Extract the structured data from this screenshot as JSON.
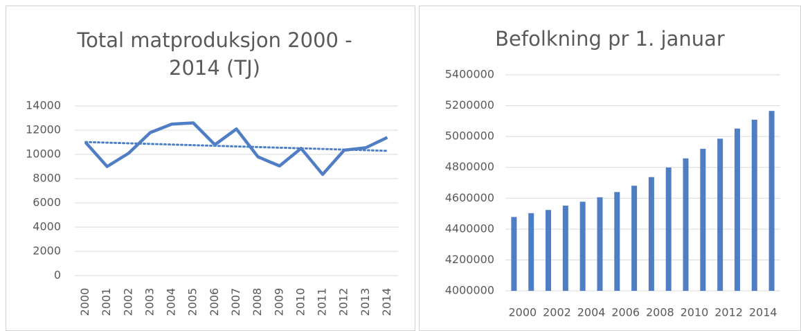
{
  "chart_data": [
    {
      "type": "line",
      "title": "Total matproduksjon 2000 - 2014 (TJ)",
      "categories": [
        "2000",
        "2001",
        "2002",
        "2003",
        "2004",
        "2005",
        "2006",
        "2007",
        "2008",
        "2009",
        "2010",
        "2011",
        "2012",
        "2013",
        "2014"
      ],
      "values": [
        11000,
        9000,
        10100,
        11800,
        12500,
        12600,
        10800,
        12100,
        9800,
        9050,
        10500,
        8350,
        10350,
        10550,
        11400
      ],
      "color": "#4f7ec4",
      "trendline": "linear",
      "ylim": [
        0,
        14000
      ],
      "yticks": [
        0,
        2000,
        4000,
        6000,
        8000,
        10000,
        12000,
        14000
      ],
      "grid": true
    },
    {
      "type": "bar",
      "title": "Befolkning pr 1. januar",
      "categories": [
        "2000",
        null,
        "2002",
        null,
        "2004",
        null,
        "2006",
        null,
        "2008",
        null,
        "2010",
        null,
        "2012",
        null,
        "2014",
        null
      ],
      "values": [
        4478497,
        4503436,
        4524066,
        4552252,
        4577457,
        4606363,
        4640219,
        4681134,
        4737171,
        4799252,
        4858199,
        4920305,
        4985870,
        5051275,
        5109056,
        5165802
      ],
      "color": "#4f7ec4",
      "ylim": [
        4000000,
        5400000
      ],
      "yticks": [
        4000000,
        4200000,
        4400000,
        4600000,
        4800000,
        5000000,
        5200000,
        5400000
      ],
      "grid": true
    }
  ]
}
